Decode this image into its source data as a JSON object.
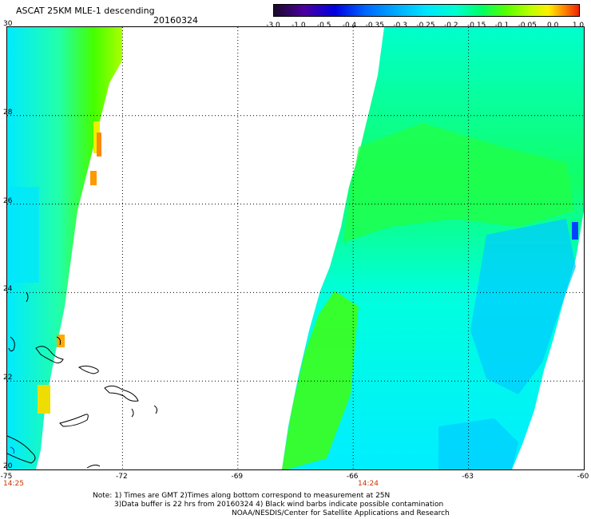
{
  "header": {
    "title": "ASCAT 25KM MLE-1 descending",
    "date": "20160324"
  },
  "colorbar": {
    "labels": [
      "-3.0",
      "-1.0",
      "-0.5",
      "-0.4",
      "-0.35",
      "-0.3",
      "-0.25",
      "-0.2",
      "-0.15",
      "-0.1",
      "-0.05",
      "0.0",
      "1.0"
    ],
    "colors": [
      "#1a0a2a",
      "#4b00a0",
      "#0000e0",
      "#0066ff",
      "#00aaff",
      "#00e5ff",
      "#00ffcc",
      "#00ff66",
      "#55ff00",
      "#bbff00",
      "#ffee00",
      "#ff8800",
      "#ee2200"
    ]
  },
  "map": {
    "lat_labels": [
      "30",
      "28",
      "26",
      "24",
      "22",
      "20"
    ],
    "lon_labels": [
      "-75",
      "-72",
      "-69",
      "-66",
      "-63",
      "-60"
    ],
    "pass_times": [
      "14:25",
      "14:24"
    ],
    "gridlines": "dotted",
    "swaths": [
      {
        "name": "west-swath",
        "dominant": "mixed green and cyan with yellow/orange along eastern edge"
      },
      {
        "name": "east-swath",
        "dominant": "cyan with green in north and west, blue patches in southeast"
      }
    ]
  },
  "notes": {
    "line1": "Note: 1) Times are GMT 2)Times along bottom correspond to measurement at 25N",
    "line2": "3)Data buffer is 22 hrs from 20160324 4) Black wind barbs indicate possible contamination",
    "line3": "NOAA/NESDIS/Center for Satellite Applications and Research"
  }
}
